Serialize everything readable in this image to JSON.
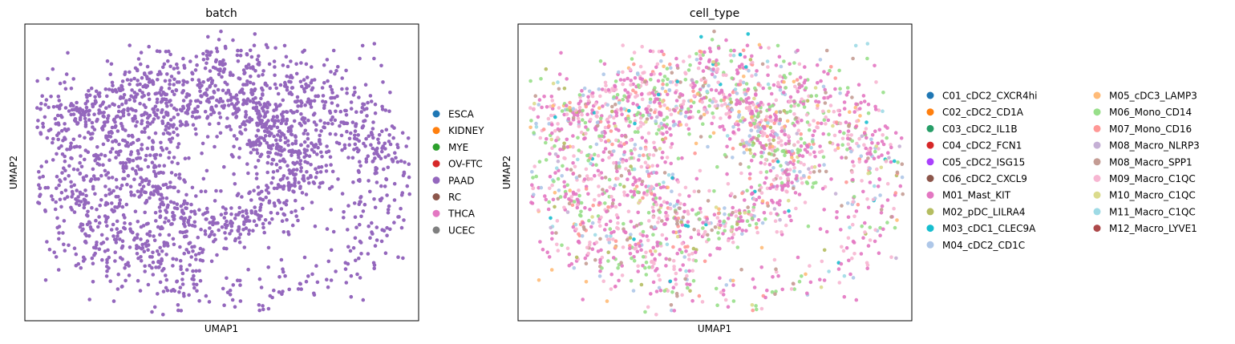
{
  "chart_data": [
    {
      "type": "scatter",
      "title": "batch",
      "xlabel": "UMAP1",
      "ylabel": "UMAP2",
      "ticks": false,
      "grid": false,
      "legend_placement": "right",
      "legend": [
        {
          "label": "ESCA",
          "color": "#1f77b4"
        },
        {
          "label": "KIDNEY",
          "color": "#ff7f0e"
        },
        {
          "label": "MYE",
          "color": "#2ca02c"
        },
        {
          "label": "OV-FTC",
          "color": "#d62728"
        },
        {
          "label": "PAAD",
          "color": "#9467bd"
        },
        {
          "label": "RC",
          "color": "#8c564b"
        },
        {
          "label": "THCA",
          "color": "#e377c2"
        },
        {
          "label": "UCEC",
          "color": "#7f7f7f"
        }
      ],
      "dominant_category": "PAAD"
    },
    {
      "type": "scatter",
      "title": "cell_type",
      "xlabel": "UMAP1",
      "ylabel": "UMAP2",
      "ticks": false,
      "grid": false,
      "legend_placement": "right",
      "legend": [
        {
          "label": "C01_cDC2_CXCR4hi",
          "color": "#1f77b4"
        },
        {
          "label": "C02_cDC2_CD1A",
          "color": "#ff7f0e"
        },
        {
          "label": "C03_cDC2_IL1B",
          "color": "#279e68"
        },
        {
          "label": "C04_cDC2_FCN1",
          "color": "#d62728"
        },
        {
          "label": "C05_cDC2_ISG15",
          "color": "#aa40fc"
        },
        {
          "label": "C06_cDC2_CXCL9",
          "color": "#8c564b"
        },
        {
          "label": "M01_Mast_KIT",
          "color": "#e377c2"
        },
        {
          "label": "M02_pDC_LILRA4",
          "color": "#b5bd61"
        },
        {
          "label": "M03_cDC1_CLEC9A",
          "color": "#17becf"
        },
        {
          "label": "M04_cDC2_CD1C",
          "color": "#aec7e8"
        },
        {
          "label": "M05_cDC3_LAMP3",
          "color": "#ffbb78"
        },
        {
          "label": "M06_Mono_CD14",
          "color": "#98df8a"
        },
        {
          "label": "M07_Mono_CD16",
          "color": "#ff9896"
        },
        {
          "label": "M08_Macro_NLRP3",
          "color": "#c5b0d5"
        },
        {
          "label": "M08_Macro_SPP1",
          "color": "#c49c94"
        },
        {
          "label": "M09_Macro_C1QC",
          "color": "#f7b6d2"
        },
        {
          "label": "M10_Macro_C1QC",
          "color": "#dbdb8d"
        },
        {
          "label": "M11_Macro_C1QC",
          "color": "#9edae5"
        },
        {
          "label": "M12_Macro_LYVE1",
          "color": "#ad494a"
        }
      ],
      "point_mix": {
        "M01_Mast_KIT": 0.34,
        "M09_Macro_C1QC": 0.22,
        "M06_Mono_CD14": 0.14,
        "M08_Macro_SPP1": 0.07,
        "M04_cDC2_CD1C": 0.07,
        "M07_Mono_CD16": 0.05,
        "M05_cDC3_LAMP3": 0.03,
        "M02_pDC_LILRA4": 0.02,
        "M03_cDC1_CLEC9A": 0.015,
        "M11_Macro_C1QC": 0.02,
        "M10_Macro_C1QC": 0.015,
        "M08_Macro_NLRP3": 0.01
      }
    }
  ]
}
